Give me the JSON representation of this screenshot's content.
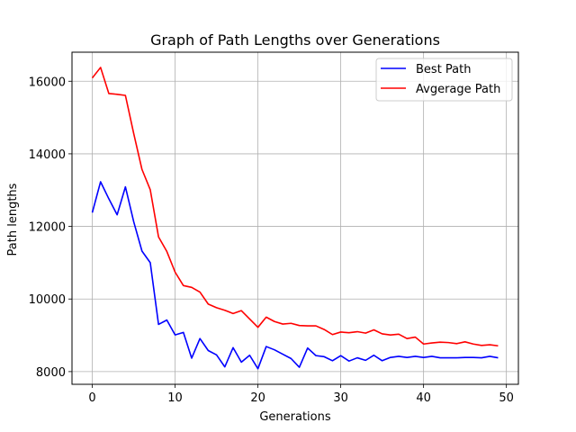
{
  "chart_data": {
    "type": "line",
    "title": "Graph of Path Lengths over Generations",
    "xlabel": "Generations",
    "ylabel": "Path lengths",
    "xlim": [
      -2.45,
      51.45
    ],
    "ylim": [
      7650,
      16800
    ],
    "xticks": [
      0,
      10,
      20,
      30,
      40,
      50
    ],
    "yticks": [
      8000,
      10000,
      12000,
      14000,
      16000
    ],
    "grid": true,
    "legend_position": "top-right",
    "x": [
      0,
      1,
      2,
      3,
      4,
      5,
      6,
      7,
      8,
      9,
      10,
      11,
      12,
      13,
      14,
      15,
      16,
      17,
      18,
      19,
      20,
      21,
      22,
      23,
      24,
      25,
      26,
      27,
      28,
      29,
      30,
      31,
      32,
      33,
      34,
      35,
      36,
      37,
      38,
      39,
      40,
      41,
      42,
      43,
      44,
      45,
      46,
      47,
      48,
      49
    ],
    "series": [
      {
        "name": "Best Path",
        "color": "#0000ff",
        "values": [
          12380,
          13230,
          12760,
          12320,
          13090,
          12130,
          11320,
          11000,
          9300,
          9420,
          9010,
          9080,
          8370,
          8910,
          8580,
          8460,
          8130,
          8660,
          8260,
          8450,
          8080,
          8690,
          8600,
          8480,
          8360,
          8120,
          8650,
          8440,
          8410,
          8300,
          8440,
          8290,
          8380,
          8310,
          8450,
          8300,
          8390,
          8420,
          8390,
          8420,
          8390,
          8420,
          8380,
          8380,
          8380,
          8390,
          8390,
          8380,
          8420,
          8380
        ]
      },
      {
        "name": "Avgerage Path",
        "color": "#ff0000",
        "values": [
          16090,
          16380,
          15660,
          15640,
          15610,
          14560,
          13570,
          13010,
          11710,
          11310,
          10740,
          10370,
          10320,
          10190,
          9860,
          9760,
          9690,
          9600,
          9680,
          9450,
          9220,
          9500,
          9380,
          9310,
          9330,
          9270,
          9260,
          9260,
          9160,
          9020,
          9090,
          9070,
          9100,
          9060,
          9150,
          9040,
          9010,
          9030,
          8910,
          8950,
          8760,
          8790,
          8810,
          8800,
          8770,
          8820,
          8760,
          8720,
          8740,
          8710
        ]
      }
    ]
  }
}
